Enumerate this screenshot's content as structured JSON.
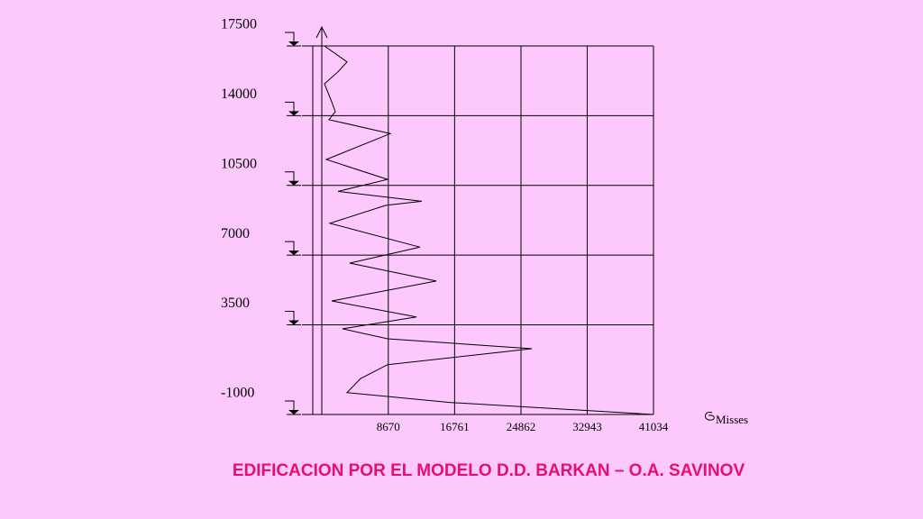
{
  "chart_data": {
    "type": "line",
    "title": "EDIFICACION POR EL MODELO D.D. BARKAN – O.A. SAVINOV",
    "x_label": "Misses",
    "x": [
      880,
      3630,
      2530,
      880,
      1760,
      2200,
      1430,
      8910,
      1100,
      8580,
      2530,
      12760,
      8360,
      1540,
      12540,
      3960,
      14520,
      1760,
      12100,
      3080,
      8580,
      26180,
      8580,
      5280,
      3630,
      16280,
      41034
    ],
    "values": [
      17500,
      16700,
      16200,
      15600,
      14700,
      14200,
      13800,
      13100,
      11800,
      10800,
      10200,
      9700,
      9500,
      8600,
      7400,
      6600,
      5700,
      4700,
      3900,
      3300,
      2800,
      2300,
      1500,
      800,
      100,
      -400,
      -1000
    ],
    "color": "#000000",
    "xlim": [
      0,
      41034
    ],
    "ylim": [
      -1000,
      17500
    ],
    "xticks": [
      8670,
      16761,
      24862,
      32943,
      41034
    ],
    "yticks": [
      17500,
      14000,
      10500,
      7000,
      3500,
      -1000
    ],
    "grid": true
  }
}
